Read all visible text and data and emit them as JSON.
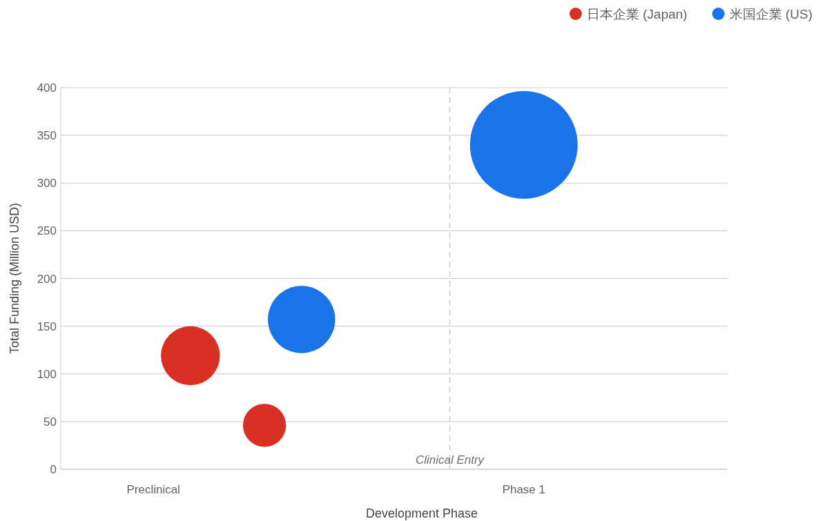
{
  "chart_data": {
    "type": "bubble",
    "xlabel": "Development Phase",
    "ylabel": "Total Funding (Million USD)",
    "categories": [
      null,
      null,
      "Preclinical",
      null,
      null,
      null,
      null,
      null,
      null,
      null,
      null,
      null,
      "Phase 1",
      null,
      null,
      null,
      null,
      null
    ],
    "ylim": [
      0,
      400
    ],
    "yticks": [
      0,
      50,
      100,
      150,
      200,
      250,
      300,
      350,
      400
    ],
    "grid": "y",
    "legend": "top right",
    "series": [
      {
        "name": "日本企業 (Japan)",
        "color": "#d93025",
        "values": [
          null,
          null,
          null,
          119,
          null,
          46,
          null,
          null,
          null,
          null,
          null,
          null,
          null,
          null,
          null,
          null,
          null,
          null
        ],
        "sizes": [
          null,
          null,
          null,
          0.3,
          null,
          0.16,
          null,
          null,
          null,
          null,
          null,
          null,
          null,
          null,
          null,
          null,
          null,
          null
        ]
      },
      {
        "name": "米国企業 (US)",
        "color": "#1a73e8",
        "values": [
          null,
          null,
          null,
          null,
          null,
          null,
          157,
          null,
          null,
          null,
          null,
          null,
          340,
          null,
          null,
          null,
          null,
          null
        ],
        "sizes": [
          null,
          null,
          null,
          null,
          null,
          null,
          0.39,
          null,
          null,
          null,
          null,
          null,
          1,
          null,
          null,
          null,
          null,
          null
        ]
      }
    ],
    "annotations": [
      "Clinical Entry"
    ]
  }
}
